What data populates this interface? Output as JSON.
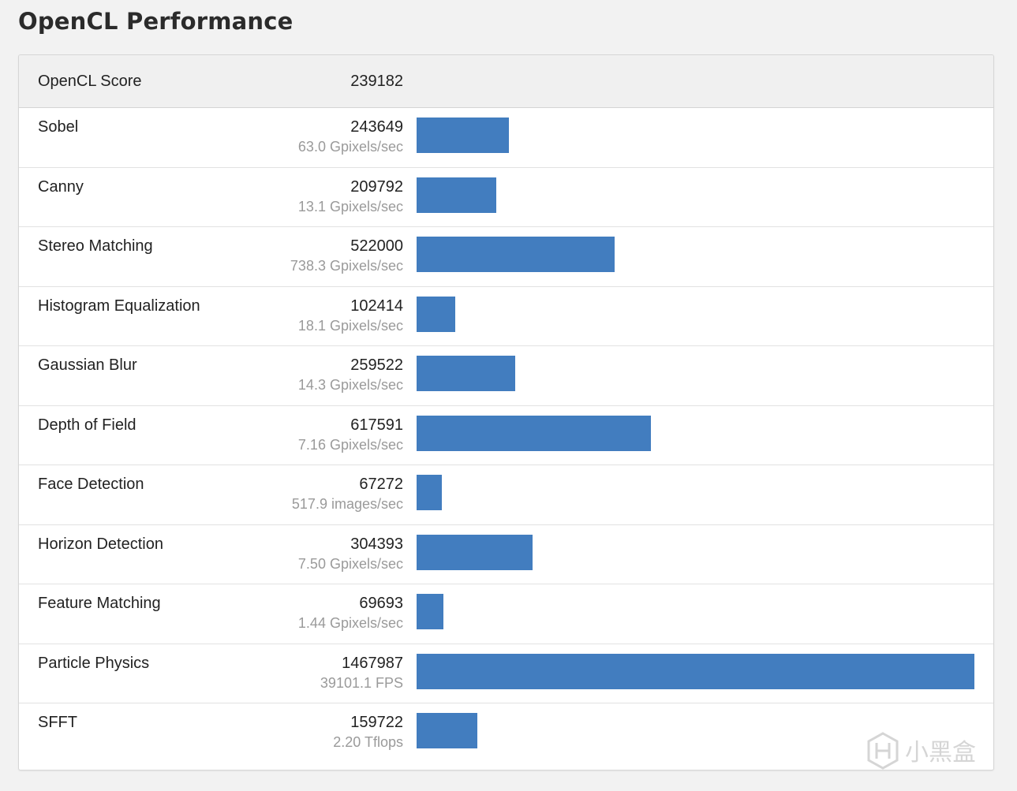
{
  "page": {
    "title": "OpenCL Performance"
  },
  "score": {
    "label": "OpenCL Score",
    "value": "239182"
  },
  "colors": {
    "bar": "#427dbf",
    "header_bg": "#f0f0f0",
    "page_bg": "#f2f2f2",
    "secondary_text": "#9a9a9a"
  },
  "watermark": {
    "text": "小黑盒"
  },
  "chart_data": {
    "type": "bar",
    "orientation": "horizontal",
    "title": "OpenCL Performance",
    "xlim": [
      0,
      1467987
    ],
    "categories": [
      "Sobel",
      "Canny",
      "Stereo Matching",
      "Histogram Equalization",
      "Gaussian Blur",
      "Depth of Field",
      "Face Detection",
      "Horizon Detection",
      "Feature Matching",
      "Particle Physics",
      "SFFT"
    ],
    "values": [
      243649,
      209792,
      522000,
      102414,
      259522,
      617591,
      67272,
      304393,
      69693,
      1467987,
      159722
    ],
    "rates": [
      "63.0 Gpixels/sec",
      "13.1 Gpixels/sec",
      "738.3 Gpixels/sec",
      "18.1 Gpixels/sec",
      "14.3 Gpixels/sec",
      "7.16 Gpixels/sec",
      "517.9 images/sec",
      "7.50 Gpixels/sec",
      "1.44 Gpixels/sec",
      "39101.1 FPS",
      "2.20 Tflops"
    ]
  }
}
